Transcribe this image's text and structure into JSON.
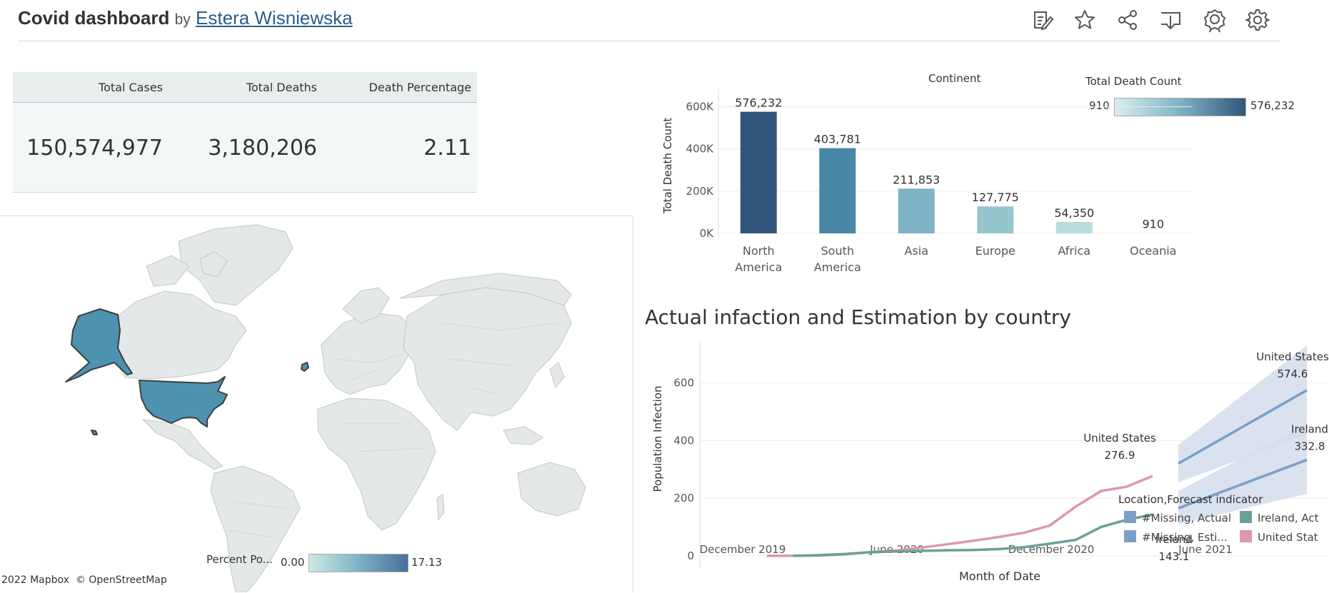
{
  "header": {
    "title": "Covid dashboard",
    "by": "by",
    "author": "Estera Wisniewska",
    "tools": [
      "edit-icon",
      "star-icon",
      "share-icon",
      "download-icon",
      "badge-icon",
      "gear-icon"
    ]
  },
  "kpi": {
    "headers": [
      "Total Cases",
      "Total Deaths",
      "Death Percentage"
    ],
    "values": [
      "150,574,977",
      "3,180,206",
      "2.11"
    ]
  },
  "map": {
    "legend_title": "Percent Po...",
    "legend_min": "0.00",
    "legend_max": "17.13",
    "credit": "2022 Mapbox",
    "credit2": "© OpenStreetMap",
    "colors": {
      "highlight": "#4d93b0",
      "land": "#e4e8e9",
      "border": "#c3c7c8"
    }
  },
  "bar_legend": {
    "title": "Total Death Count",
    "min": "910",
    "max": "576,232"
  },
  "chart_data": [
    {
      "type": "bar",
      "title": "Continent",
      "xlabel": "",
      "ylabel": "Total Death Count",
      "categories": [
        "North America",
        "South America",
        "Asia",
        "Europe",
        "Africa",
        "Oceania"
      ],
      "values": [
        576232,
        403781,
        211853,
        127775,
        54350,
        910
      ],
      "labels": [
        "576,232",
        "403,781",
        "211,853",
        "127,775",
        "54,350",
        "910"
      ],
      "ylim": [
        0,
        700000
      ],
      "yticks": [
        "0K",
        "200K",
        "400K",
        "600K"
      ],
      "colors": [
        "#33557b",
        "#4a87a6",
        "#7db3c4",
        "#96c6cd",
        "#b9dcdc",
        "#d9eeee"
      ],
      "grid": true
    },
    {
      "type": "line",
      "title": "Actual infaction and Estimation by country",
      "xlabel": "Month of Date",
      "ylabel": "Population Infection",
      "x_ticks": [
        "December 2019",
        "June 2020",
        "December 2020",
        "June 2021"
      ],
      "y_ticks": [
        "0",
        "200",
        "400",
        "600"
      ],
      "ylim": [
        -40,
        740
      ],
      "legend_title": "Location,Forecast indicator",
      "legend": [
        {
          "label": "#Missing, Actual",
          "color": "#7b9fc9"
        },
        {
          "label": "Ireland, Act",
          "color": "#6aa09a"
        },
        {
          "label": "#Missing, Esti...",
          "color": "#7b9fc9"
        },
        {
          "label": "United Stat",
          "color": "#dc98ad"
        }
      ],
      "series": [
        {
          "name": "United States",
          "color": "#dc98ad",
          "x": [
            "2020-01",
            "2020-02",
            "2020-03",
            "2020-04",
            "2020-05",
            "2020-06",
            "2020-07",
            "2020-08",
            "2020-09",
            "2020-10",
            "2020-11",
            "2020-12",
            "2021-01",
            "2021-02",
            "2021-03",
            "2021-04"
          ],
          "y": [
            0,
            0,
            1,
            5,
            13,
            18,
            28,
            40,
            52,
            65,
            80,
            105,
            170,
            225,
            240,
            276.9
          ]
        },
        {
          "name": "Ireland",
          "color": "#6aa09a",
          "x": [
            "2020-02",
            "2020-03",
            "2020-04",
            "2020-05",
            "2020-06",
            "2020-07",
            "2020-08",
            "2020-09",
            "2020-10",
            "2020-11",
            "2020-12",
            "2021-01",
            "2021-02",
            "2021-03",
            "2021-04"
          ],
          "y": [
            0,
            2,
            6,
            12,
            15,
            17,
            19,
            20,
            23,
            30,
            42,
            55,
            100,
            125,
            143.1
          ]
        },
        {
          "name": "United States",
          "color": "#7b9fc9",
          "band": "#d2ddeb",
          "x": [
            "2021-05",
            "2021-10"
          ],
          "y": [
            320,
            574.6
          ],
          "upper": [
            385,
            730
          ],
          "lower": [
            255,
            420
          ]
        },
        {
          "name": "Ireland",
          "color": "#7b9fc9",
          "band": "#d2ddeb",
          "x": [
            "2021-05",
            "2021-10"
          ],
          "y": [
            165,
            332.8
          ],
          "upper": [
            225,
            455
          ],
          "lower": [
            110,
            215
          ]
        }
      ],
      "annotations": [
        {
          "name": "United States",
          "value": "276.9"
        },
        {
          "name": "Ireland",
          "value": "143.1"
        },
        {
          "name": "United States",
          "value": "574.6"
        },
        {
          "name": "Ireland",
          "value": "332.8"
        }
      ]
    }
  ]
}
